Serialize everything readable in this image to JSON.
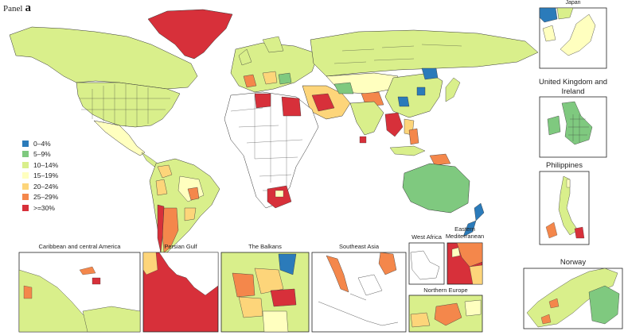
{
  "panel": {
    "label": "Panel",
    "letter": "a"
  },
  "legend": {
    "items": [
      {
        "label": "0–4%",
        "color": "#2b7bba"
      },
      {
        "label": "5–9%",
        "color": "#7fc97f"
      },
      {
        "label": "10–14%",
        "color": "#d9ef8b"
      },
      {
        "label": "15–19%",
        "color": "#ffffbf"
      },
      {
        "label": "20–24%",
        "color": "#fdd57a"
      },
      {
        "label": "25–29%",
        "color": "#f4874b"
      },
      {
        "label": ">=30%",
        "color": "#d7303a"
      }
    ]
  },
  "insets": {
    "caribbean": "Caribbean and central America",
    "persian_gulf": "Persian Gulf",
    "balkans": "The Balkans",
    "southeast_asia": "Southeast Asia",
    "west_africa": "West Africa",
    "eastern_med": "Eastern Mediterranean",
    "northern_europe": "Northern Europe",
    "japan": "Japan",
    "uk_ireland": "United Kingdom and Ireland",
    "philippines": "Philippines",
    "norway": "Norway"
  }
}
